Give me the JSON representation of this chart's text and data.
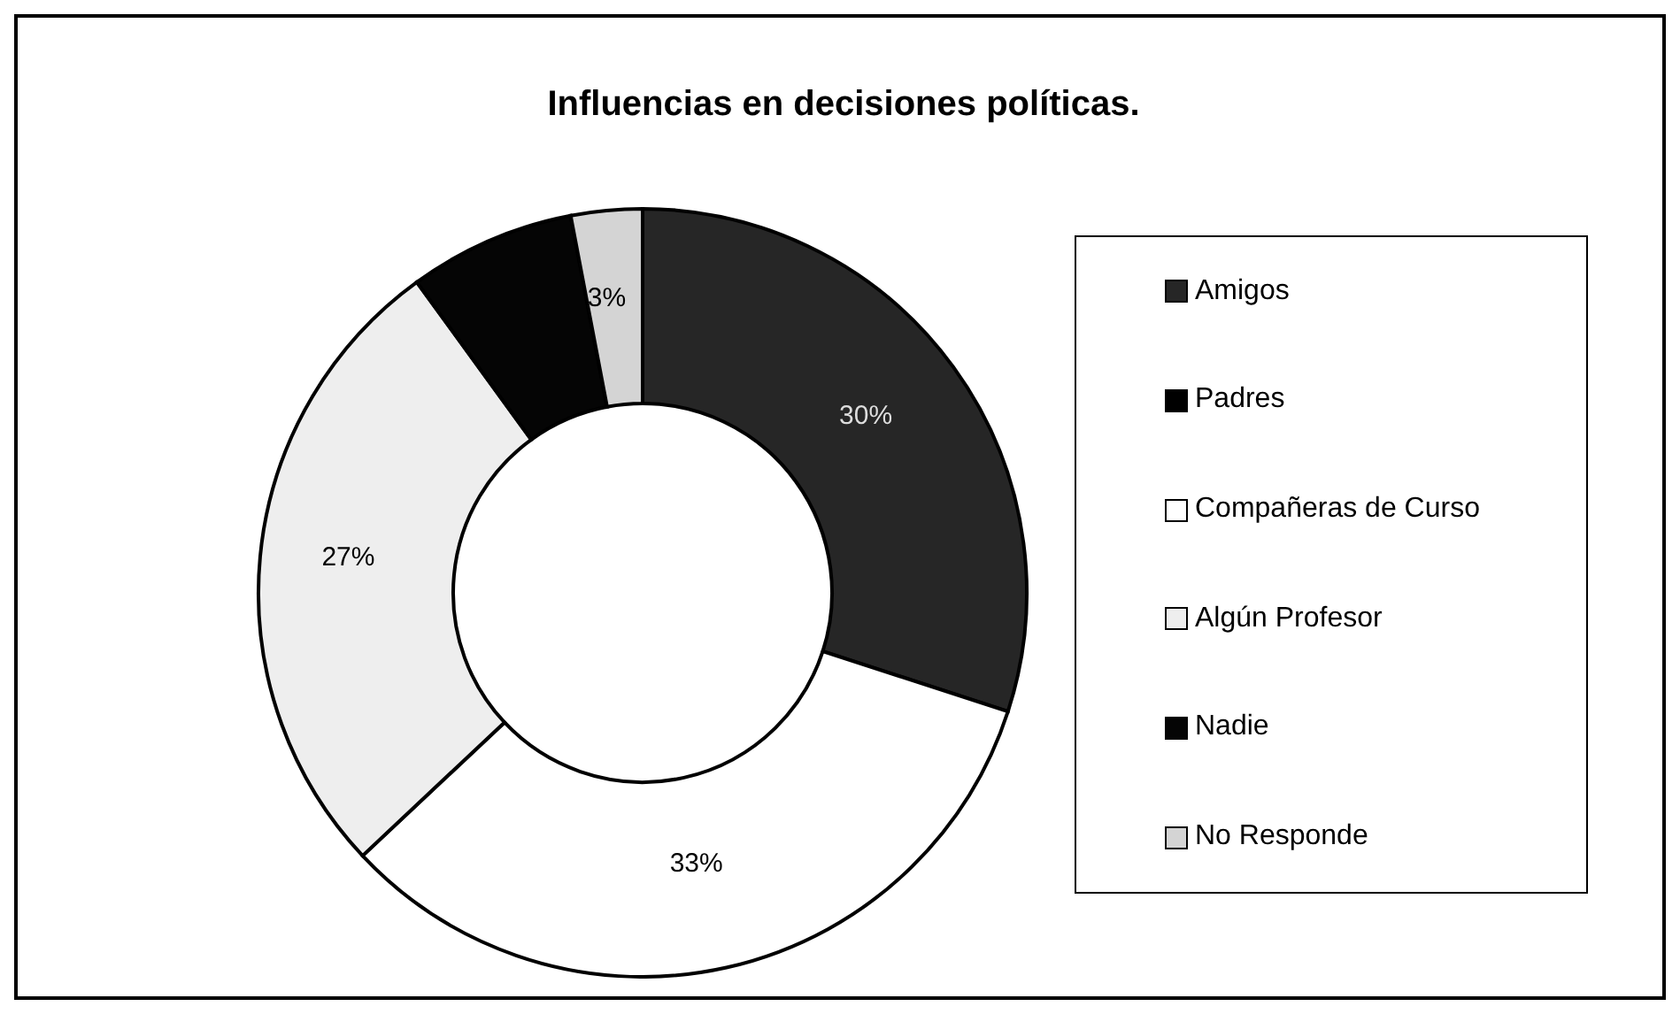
{
  "chart_data": {
    "type": "donut",
    "title": "Influencias en decisiones políticas.",
    "categories": [
      "Amigos",
      "Padres",
      "Compañeras de Curso",
      "Algún Profesor",
      "Nadie",
      "No Responde"
    ],
    "values": [
      30,
      0,
      33,
      27,
      7,
      3
    ],
    "colors": [
      "#262626",
      "#000000",
      "#ffffff",
      "#eeeeee",
      "#050505",
      "#d4d4d4"
    ],
    "value_labels": [
      "30%",
      null,
      "33%",
      "27%",
      null,
      "3%"
    ],
    "legend": "right"
  }
}
